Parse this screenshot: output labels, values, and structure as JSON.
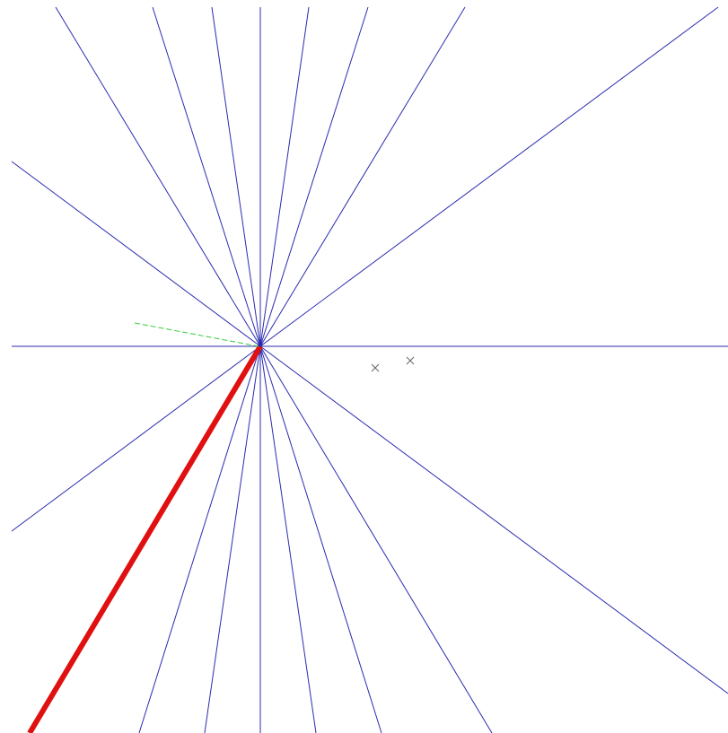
{
  "diagram": {
    "background_color": "#ffffff",
    "ray_color": "#2b2bb0",
    "highlight_color": "#e01010",
    "dashed_color": "#33cc33",
    "marker_color": "#666666",
    "ray_count": 18,
    "highlighted_ray_count": 1,
    "dashed_segment_count": 1,
    "marker_count": 2,
    "marker_symbol": "cross",
    "center_dot": true
  }
}
